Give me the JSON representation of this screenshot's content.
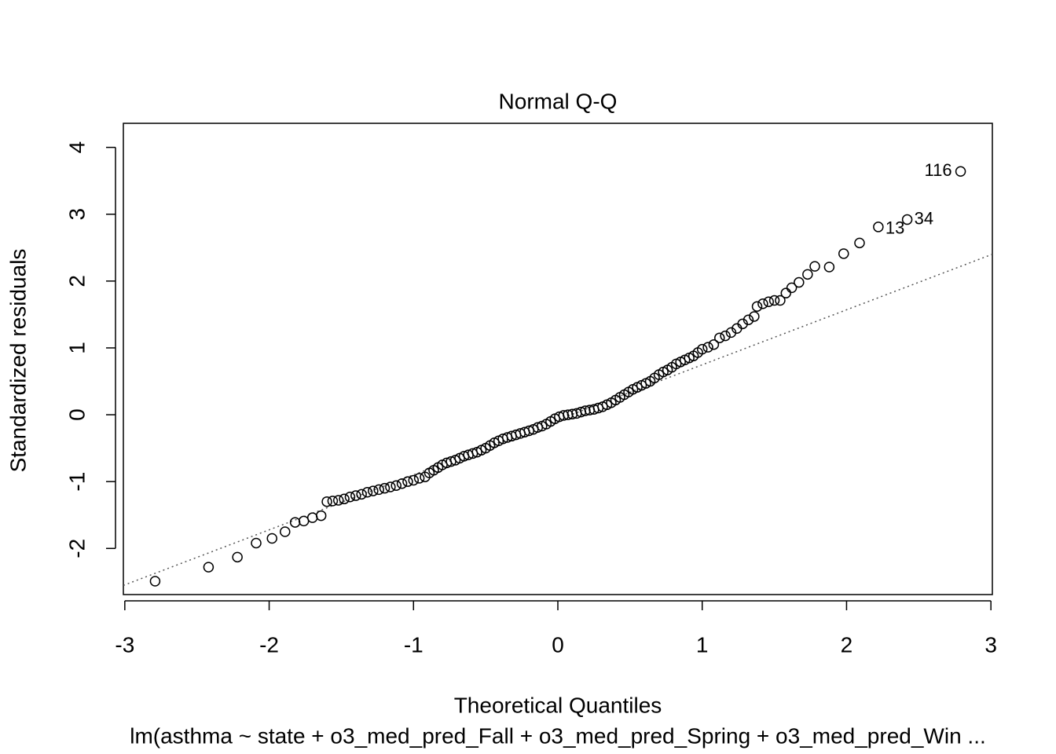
{
  "chart_data": {
    "type": "scatter",
    "title": "Normal Q-Q",
    "xlabel": "Theoretical Quantiles",
    "ylabel": "Standardized residuals",
    "subtitle": "lm(asthma ~ state + o3_med_pred_Fall + o3_med_pred_Spring + o3_med_pred_Win ...",
    "x": [
      -2.79,
      -2.42,
      -2.22,
      -2.09,
      -1.98,
      -1.89,
      -1.82,
      -1.76,
      -1.7,
      -1.64,
      -1.6,
      -1.56,
      -1.52,
      -1.48,
      -1.44,
      -1.4,
      -1.36,
      -1.32,
      -1.28,
      -1.24,
      -1.2,
      -1.16,
      -1.12,
      -1.08,
      -1.04,
      -1.0,
      -0.96,
      -0.92,
      -0.89,
      -0.86,
      -0.83,
      -0.8,
      -0.77,
      -0.74,
      -0.71,
      -0.68,
      -0.65,
      -0.62,
      -0.59,
      -0.56,
      -0.53,
      -0.5,
      -0.47,
      -0.44,
      -0.41,
      -0.38,
      -0.35,
      -0.32,
      -0.29,
      -0.26,
      -0.23,
      -0.2,
      -0.17,
      -0.14,
      -0.11,
      -0.08,
      -0.05,
      -0.02,
      0.01,
      0.04,
      0.07,
      0.1,
      0.13,
      0.16,
      0.19,
      0.22,
      0.25,
      0.28,
      0.31,
      0.34,
      0.37,
      0.4,
      0.43,
      0.46,
      0.49,
      0.52,
      0.55,
      0.58,
      0.61,
      0.64,
      0.67,
      0.7,
      0.73,
      0.76,
      0.79,
      0.82,
      0.85,
      0.88,
      0.91,
      0.94,
      0.97,
      1.0,
      1.04,
      1.08,
      1.12,
      1.16,
      1.2,
      1.24,
      1.28,
      1.32,
      1.36,
      1.38,
      1.42,
      1.46,
      1.5,
      1.54,
      1.58,
      1.62,
      1.67,
      1.73,
      1.78,
      1.88,
      1.98,
      2.09,
      2.22,
      2.42,
      2.79
    ],
    "values": [
      -2.49,
      -2.28,
      -2.13,
      -1.92,
      -1.85,
      -1.75,
      -1.61,
      -1.59,
      -1.54,
      -1.51,
      -1.3,
      -1.29,
      -1.28,
      -1.26,
      -1.23,
      -1.21,
      -1.19,
      -1.16,
      -1.14,
      -1.12,
      -1.1,
      -1.08,
      -1.06,
      -1.03,
      -1.0,
      -0.98,
      -0.95,
      -0.93,
      -0.87,
      -0.83,
      -0.79,
      -0.75,
      -0.72,
      -0.7,
      -0.68,
      -0.65,
      -0.62,
      -0.6,
      -0.58,
      -0.56,
      -0.53,
      -0.5,
      -0.46,
      -0.42,
      -0.39,
      -0.36,
      -0.34,
      -0.32,
      -0.3,
      -0.28,
      -0.26,
      -0.24,
      -0.22,
      -0.19,
      -0.17,
      -0.14,
      -0.1,
      -0.06,
      -0.03,
      -0.01,
      0.0,
      0.01,
      0.02,
      0.04,
      0.06,
      0.07,
      0.08,
      0.1,
      0.12,
      0.15,
      0.18,
      0.22,
      0.26,
      0.3,
      0.34,
      0.38,
      0.41,
      0.44,
      0.47,
      0.5,
      0.55,
      0.6,
      0.64,
      0.67,
      0.71,
      0.76,
      0.79,
      0.82,
      0.85,
      0.88,
      0.93,
      0.98,
      1.01,
      1.05,
      1.15,
      1.18,
      1.23,
      1.29,
      1.36,
      1.42,
      1.47,
      1.62,
      1.66,
      1.69,
      1.71,
      1.71,
      1.82,
      1.9,
      1.98,
      2.1,
      2.22,
      2.21,
      2.41,
      2.57,
      2.81,
      2.92,
      3.64
    ],
    "color": "#000000",
    "reference_line": {
      "slope": 0.823,
      "intercept": -0.076
    },
    "annotations": [
      {
        "text": "116",
        "x": 2.79,
        "y": 3.64
      },
      {
        "text": "34",
        "x": 2.42,
        "y": 2.92
      },
      {
        "text": "13",
        "x": 2.22,
        "y": 2.81
      }
    ],
    "xlim": [
      -3.01,
      3.01
    ],
    "ylim": [
      -2.69,
      4.36
    ],
    "xticks": [
      -3,
      -2,
      -1,
      0,
      1,
      2,
      3
    ],
    "yticks": [
      -2,
      -1,
      0,
      1,
      2,
      3,
      4
    ]
  }
}
